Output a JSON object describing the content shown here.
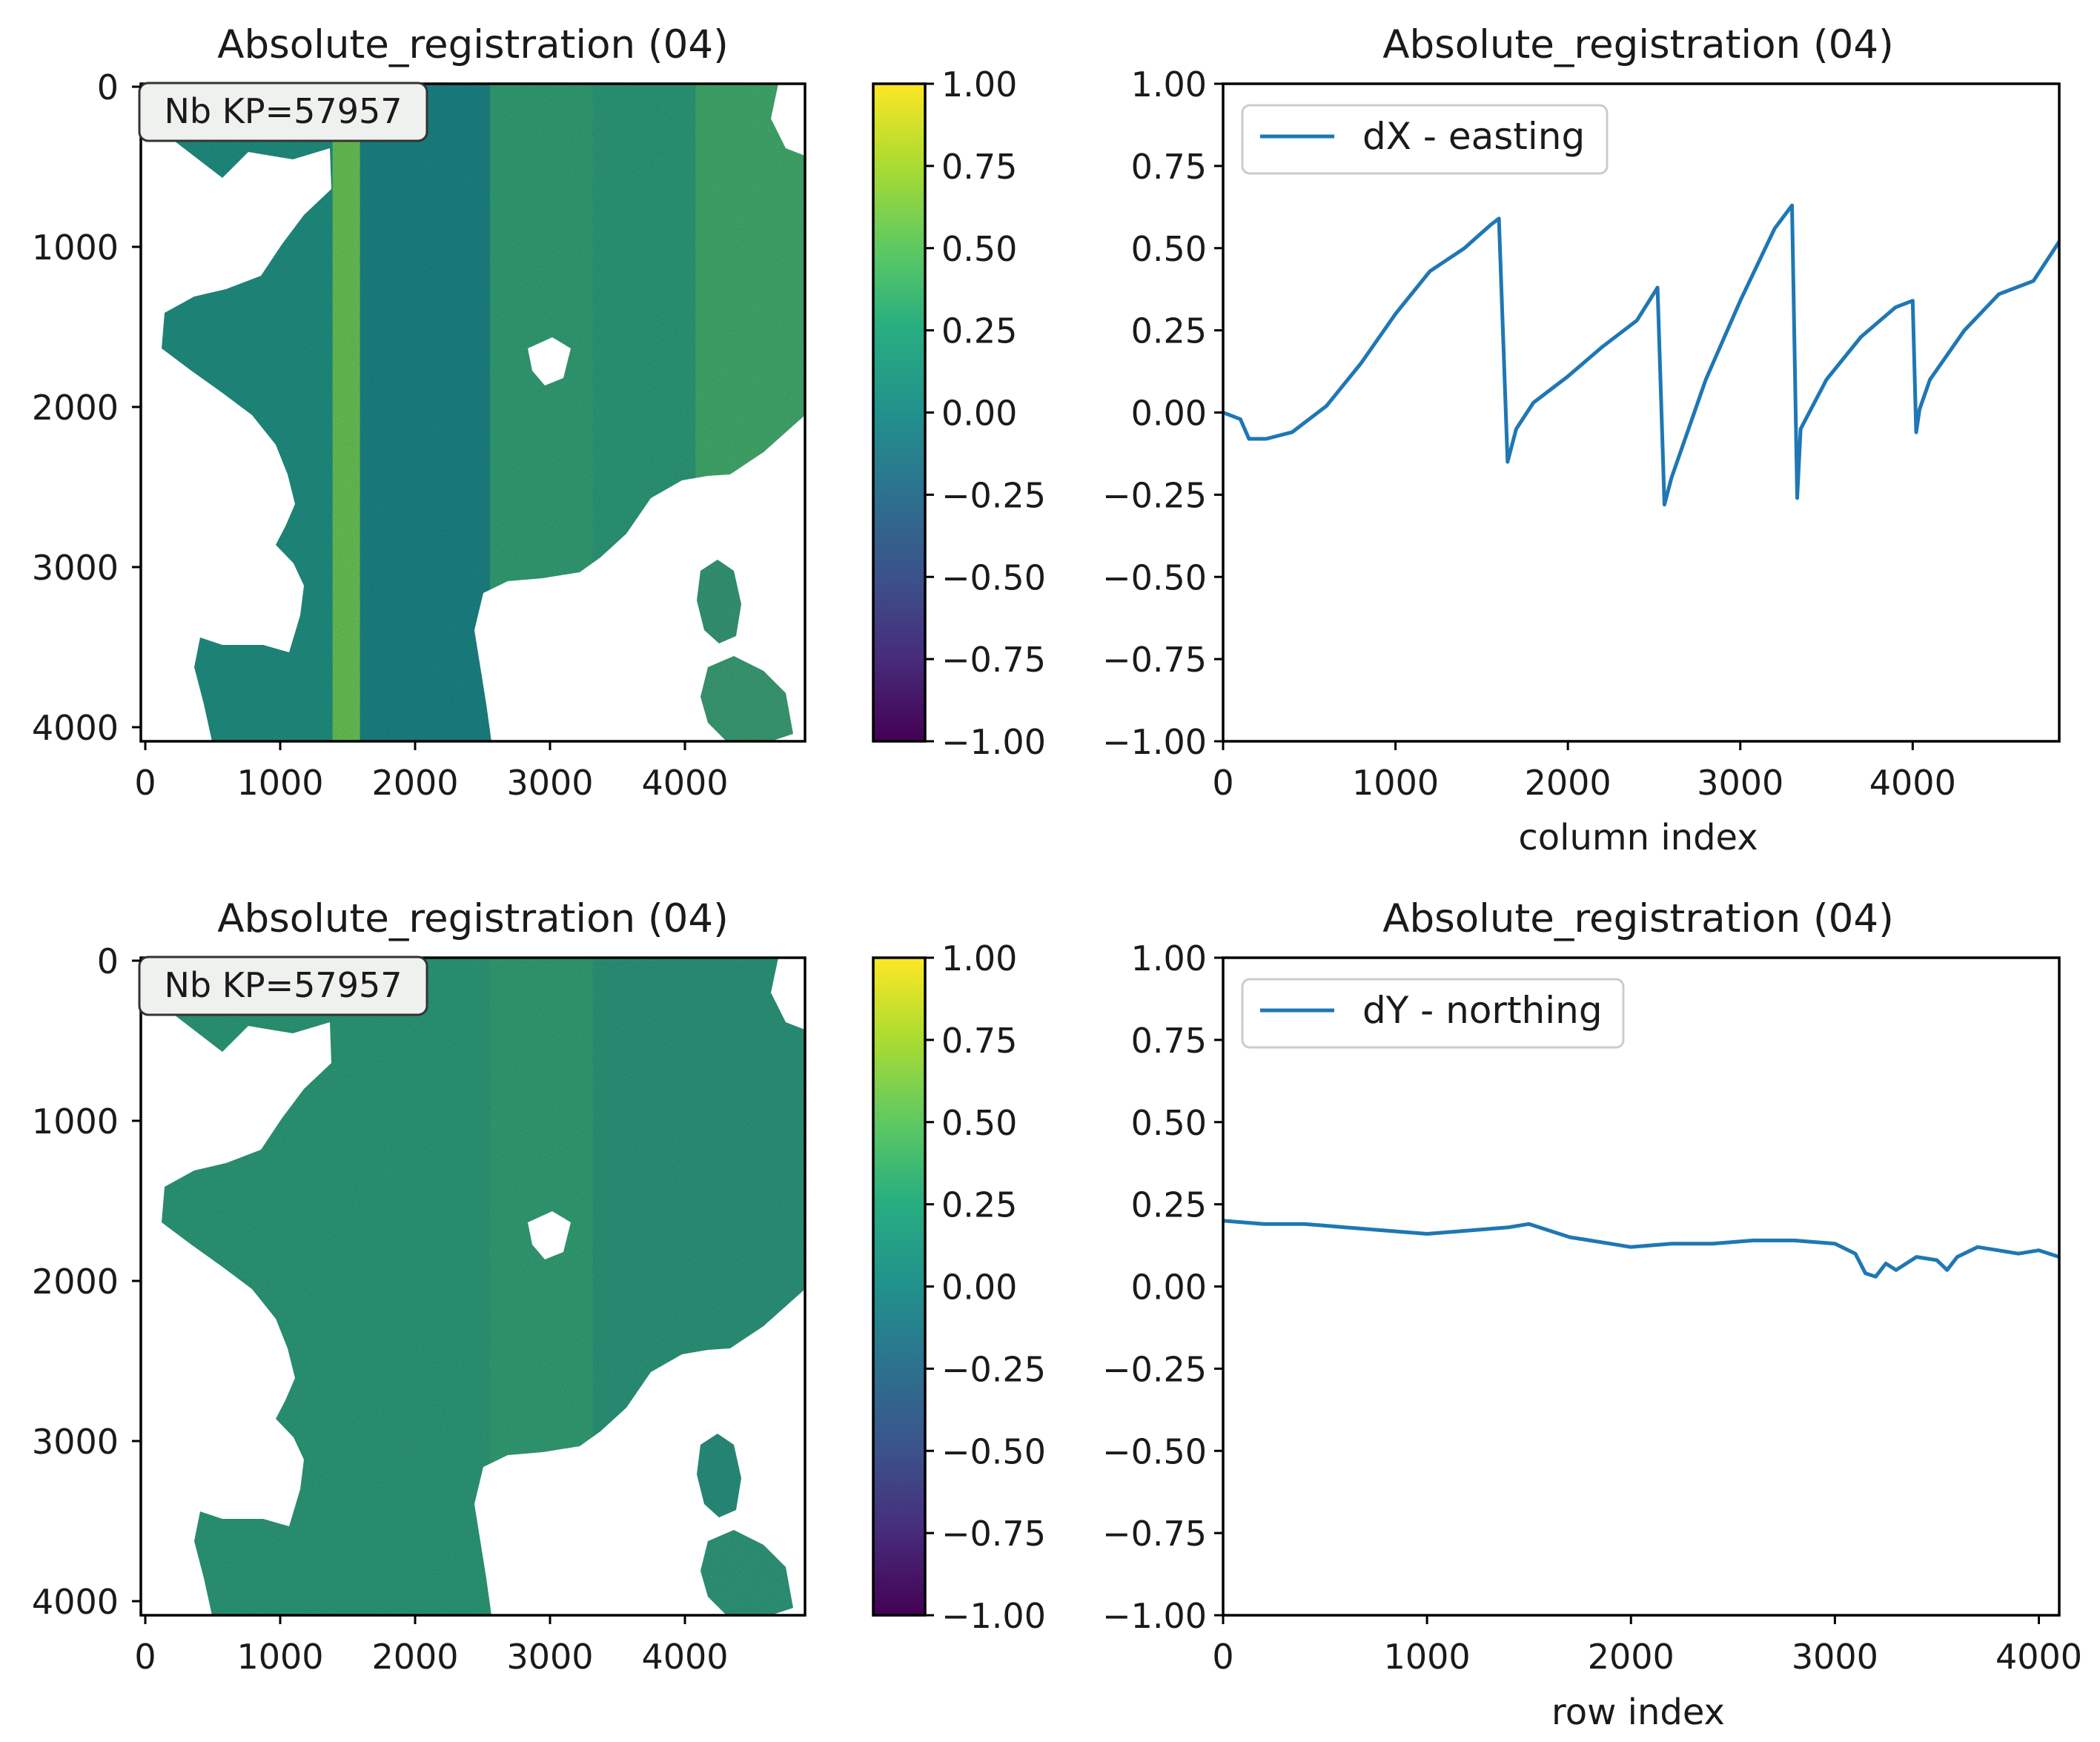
{
  "figure": {
    "colormap": "viridis",
    "colors": {
      "line": "#1f77b4",
      "axis": "#000000",
      "text": "#1a1a1a",
      "background": "#ffffff",
      "colorbar": [
        "#440154",
        "#3b528b",
        "#21918c",
        "#5ec962",
        "#fde725"
      ]
    }
  },
  "chart_data": [
    {
      "id": "map_dx",
      "type": "heatmap",
      "title": "Absolute_registration (04)",
      "annotation": "Nb KP=57957",
      "xlabel": "",
      "ylabel": "",
      "xlim": [
        0,
        4850
      ],
      "ylim": [
        4100,
        0
      ],
      "xticks": [
        0,
        1000,
        2000,
        3000,
        4000
      ],
      "yticks": [
        0,
        1000,
        2000,
        3000,
        4000
      ],
      "bands": [
        {
          "col_range": [
            0,
            1400
          ],
          "value": 0.05
        },
        {
          "col_range": [
            1400,
            1600
          ],
          "value": 0.55
        },
        {
          "col_range": [
            1600,
            2550
          ],
          "value": -0.05
        },
        {
          "col_range": [
            2550,
            3300
          ],
          "value": 0.2
        },
        {
          "col_range": [
            3300,
            4050
          ],
          "value": 0.15
        },
        {
          "col_range": [
            4050,
            4850
          ],
          "value": 0.3
        }
      ]
    },
    {
      "id": "colorbar_dx",
      "type": "heatmap",
      "role": "colorbar",
      "vmin": -1.0,
      "vmax": 1.0,
      "tick_labels": [
        "1.00",
        "0.75",
        "0.50",
        "0.25",
        "0.00",
        "−0.25",
        "−0.50",
        "−0.75",
        "−1.00"
      ]
    },
    {
      "id": "profile_dx",
      "type": "line",
      "title": "Absolute_registration (04)",
      "xlabel": "column index",
      "ylabel": "",
      "xlim": [
        0,
        4850
      ],
      "ylim": [
        -1.0,
        1.0
      ],
      "xticks": [
        "0",
        "1000",
        "2000",
        "3000",
        "4000"
      ],
      "yticks": [
        "1.00",
        "0.75",
        "0.50",
        "0.25",
        "0.00",
        "−0.25",
        "−0.50",
        "−0.75",
        "−1.00"
      ],
      "legend": {
        "location": "upper-left",
        "entries": [
          "dX - easting"
        ]
      },
      "series": [
        {
          "name": "dX - easting",
          "x": [
            0,
            100,
            150,
            250,
            400,
            600,
            800,
            1000,
            1200,
            1400,
            1550,
            1600,
            1650,
            1700,
            1800,
            2000,
            2200,
            2400,
            2520,
            2560,
            2600,
            2800,
            3000,
            3200,
            3300,
            3330,
            3350,
            3500,
            3700,
            3900,
            4000,
            4020,
            4040,
            4100,
            4300,
            4500,
            4700,
            4850
          ],
          "y": [
            0.0,
            -0.02,
            -0.08,
            -0.08,
            -0.06,
            0.02,
            0.15,
            0.3,
            0.43,
            0.5,
            0.57,
            0.59,
            -0.15,
            -0.05,
            0.03,
            0.11,
            0.2,
            0.28,
            0.38,
            -0.28,
            -0.2,
            0.1,
            0.34,
            0.56,
            0.63,
            -0.26,
            -0.05,
            0.1,
            0.23,
            0.32,
            0.34,
            -0.06,
            0.01,
            0.1,
            0.25,
            0.36,
            0.4,
            0.52
          ]
        }
      ]
    },
    {
      "id": "map_dy",
      "type": "heatmap",
      "title": "Absolute_registration (04)",
      "annotation": "Nb KP=57957",
      "xlabel": "",
      "ylabel": "",
      "xlim": [
        0,
        4850
      ],
      "ylim": [
        4100,
        0
      ],
      "xticks": [
        0,
        1000,
        2000,
        3000,
        4000
      ],
      "yticks": [
        0,
        1000,
        2000,
        3000,
        4000
      ],
      "bands": [
        {
          "col_range": [
            0,
            2550
          ],
          "value": 0.15
        },
        {
          "col_range": [
            2550,
            3300
          ],
          "value": 0.2
        },
        {
          "col_range": [
            3300,
            4850
          ],
          "value": 0.12
        }
      ]
    },
    {
      "id": "colorbar_dy",
      "type": "heatmap",
      "role": "colorbar",
      "vmin": -1.0,
      "vmax": 1.0,
      "tick_labels": [
        "1.00",
        "0.75",
        "0.50",
        "0.25",
        "0.00",
        "−0.25",
        "−0.50",
        "−0.75",
        "−1.00"
      ]
    },
    {
      "id": "profile_dy",
      "type": "line",
      "title": "Absolute_registration (04)",
      "xlabel": "row index",
      "ylabel": "",
      "xlim": [
        0,
        4100
      ],
      "ylim": [
        -1.0,
        1.0
      ],
      "xticks": [
        "0",
        "1000",
        "2000",
        "3000",
        "4000"
      ],
      "yticks": [
        "1.00",
        "0.75",
        "0.50",
        "0.25",
        "0.00",
        "−0.25",
        "−0.50",
        "−0.75",
        "−1.00"
      ],
      "legend": {
        "location": "upper-left",
        "entries": [
          "dY - northing"
        ]
      },
      "series": [
        {
          "name": "dY - northing",
          "x": [
            0,
            200,
            400,
            600,
            800,
            1000,
            1200,
            1400,
            1500,
            1600,
            1700,
            1800,
            1900,
            2000,
            2200,
            2400,
            2600,
            2800,
            3000,
            3100,
            3150,
            3200,
            3250,
            3300,
            3400,
            3500,
            3550,
            3600,
            3700,
            3800,
            3900,
            4000,
            4100
          ],
          "y": [
            0.2,
            0.19,
            0.19,
            0.18,
            0.17,
            0.16,
            0.17,
            0.18,
            0.19,
            0.17,
            0.15,
            0.14,
            0.13,
            0.12,
            0.13,
            0.13,
            0.14,
            0.14,
            0.13,
            0.1,
            0.04,
            0.03,
            0.07,
            0.05,
            0.09,
            0.08,
            0.05,
            0.09,
            0.12,
            0.11,
            0.1,
            0.11,
            0.09
          ]
        }
      ]
    }
  ]
}
